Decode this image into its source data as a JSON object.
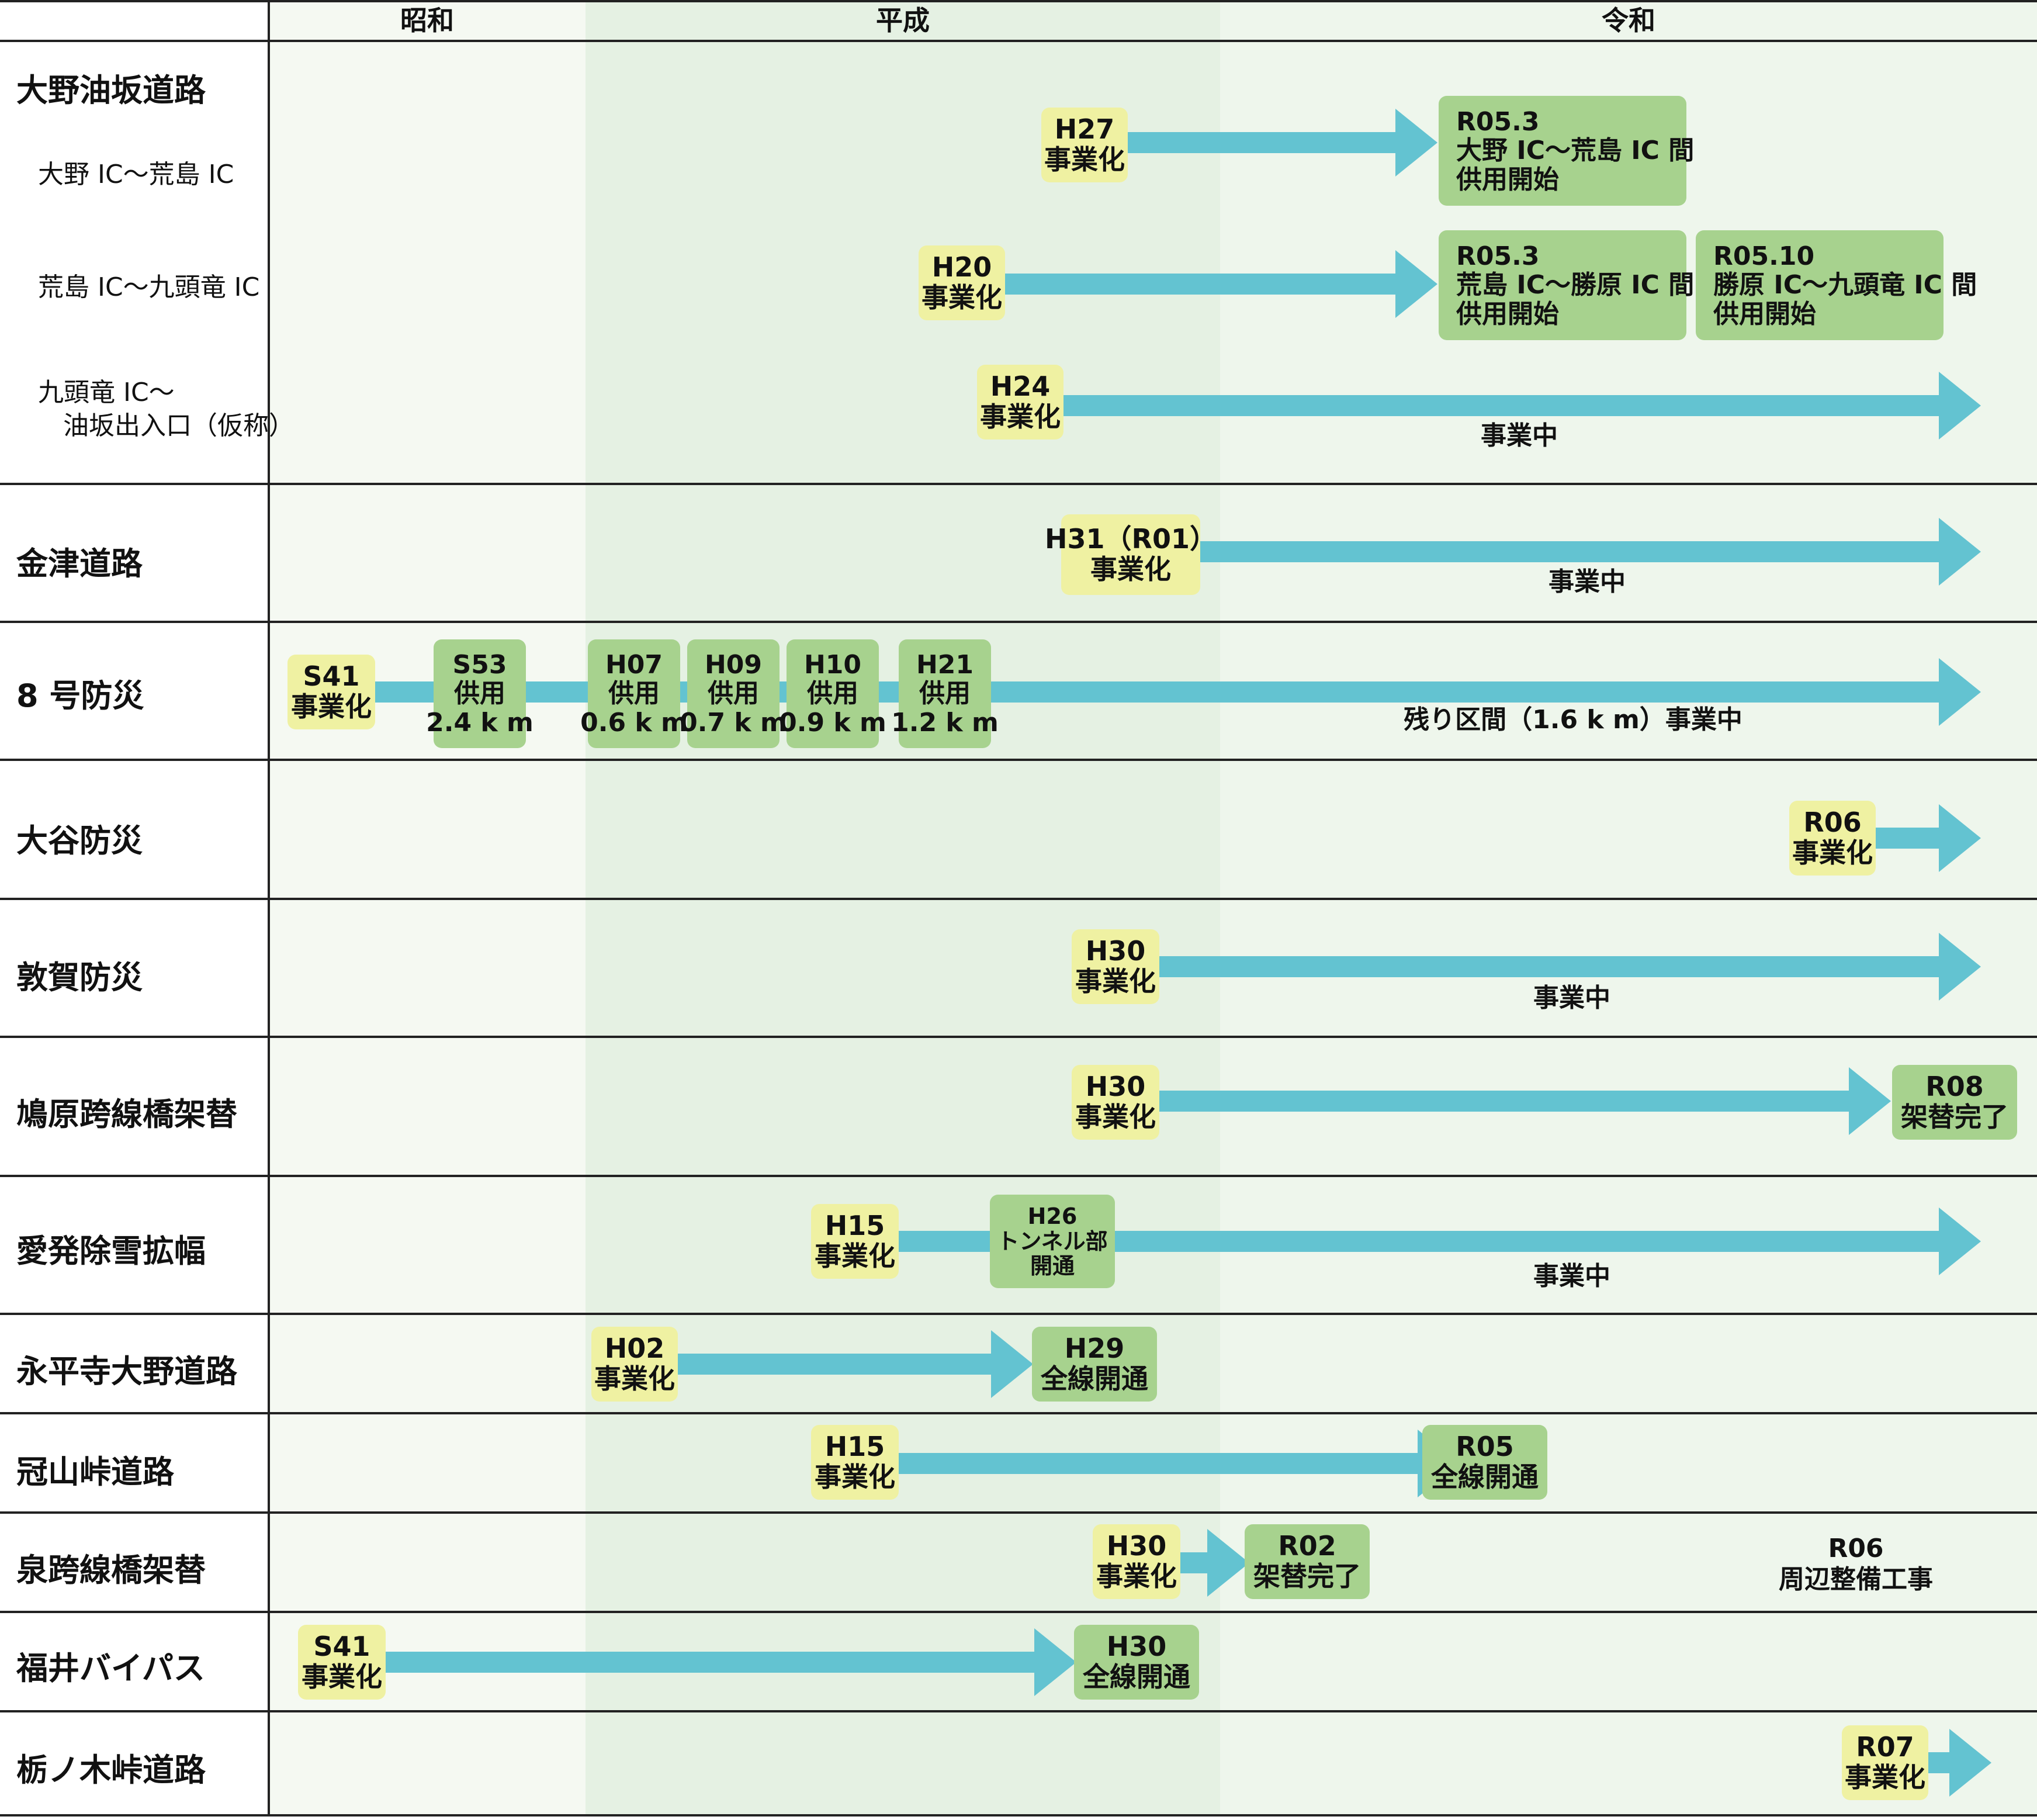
{
  "eras": [
    {
      "name": "昭和"
    },
    {
      "name": "平成"
    },
    {
      "name": "令和"
    }
  ],
  "colors": {
    "arrow": "#63c3d1",
    "start_box": "#eff1a2",
    "milestone_box": "#a7d28e",
    "showa_band": "#f5f9f2",
    "heisei_band": "#e5f1e3",
    "reiwa_band": "#eef6ec",
    "grid": "#222222"
  },
  "rows": [
    {
      "name": "大野油坂道路",
      "subs": [
        {
          "name": "大野 IC～荒島 IC"
        },
        {
          "name": "荒島 IC～九頭竜 IC"
        },
        {
          "name": "九頭竜 IC～",
          "name2": "油坂出入口（仮称）"
        }
      ],
      "items": [
        {
          "start": [
            "H27",
            "事業化"
          ],
          "milestones": [
            [
              "R05.3",
              "大野 IC～荒島 IC 間",
              "供用開始"
            ]
          ]
        },
        {
          "start": [
            "H20",
            "事業化"
          ],
          "milestones": [
            [
              "R05.3",
              "荒島 IC～勝原 IC 間",
              "供用開始"
            ],
            [
              "R05.10",
              "勝原 IC～九頭竜 IC 間",
              "供用開始"
            ]
          ]
        },
        {
          "start": [
            "H24",
            "事業化"
          ],
          "note": [
            "事業中"
          ]
        }
      ]
    },
    {
      "name": "金津道路",
      "start": [
        "H31（R01）",
        "事業化"
      ],
      "note": [
        "事業中"
      ]
    },
    {
      "name": "8 号防災",
      "start": [
        "S41",
        "事業化"
      ],
      "milestones": [
        [
          "S53",
          "供用",
          "2.4 k m"
        ],
        [
          "H07",
          "供用",
          "0.6 k m"
        ],
        [
          "H09",
          "供用",
          "0.7 k m"
        ],
        [
          "H10",
          "供用",
          "0.9 k m"
        ],
        [
          "H21",
          "供用",
          "1.2 k m"
        ]
      ],
      "note": [
        "残り区間（1.6 k m）事業中"
      ]
    },
    {
      "name": "大谷防災",
      "start": [
        "R06",
        "事業化"
      ]
    },
    {
      "name": "敦賀防災",
      "start": [
        "H30",
        "事業化"
      ],
      "note": [
        "事業中"
      ]
    },
    {
      "name": "鳩原跨線橋架替",
      "start": [
        "H30",
        "事業化"
      ],
      "milestones": [
        [
          "R08",
          "架替完了"
        ]
      ]
    },
    {
      "name": "愛発除雪拡幅",
      "start": [
        "H15",
        "事業化"
      ],
      "milestones": [
        [
          "H26",
          "トンネル部",
          "開通"
        ]
      ],
      "note": [
        "事業中"
      ]
    },
    {
      "name": "永平寺大野道路",
      "start": [
        "H02",
        "事業化"
      ],
      "milestones": [
        [
          "H29",
          "全線開通"
        ]
      ]
    },
    {
      "name": "冠山峠道路",
      "start": [
        "H15",
        "事業化"
      ],
      "milestones": [
        [
          "R05",
          "全線開通"
        ]
      ]
    },
    {
      "name": "泉跨線橋架替",
      "start": [
        "H30",
        "事業化"
      ],
      "milestones": [
        [
          "R02",
          "架替完了"
        ]
      ],
      "note": [
        "R06",
        "周辺整備工事"
      ]
    },
    {
      "name": "福井バイパス",
      "start": [
        "S41",
        "事業化"
      ],
      "milestones": [
        [
          "H30",
          "全線開通"
        ]
      ]
    },
    {
      "name": "栃ノ木峠道路",
      "start": [
        "R07",
        "事業化"
      ]
    }
  ]
}
